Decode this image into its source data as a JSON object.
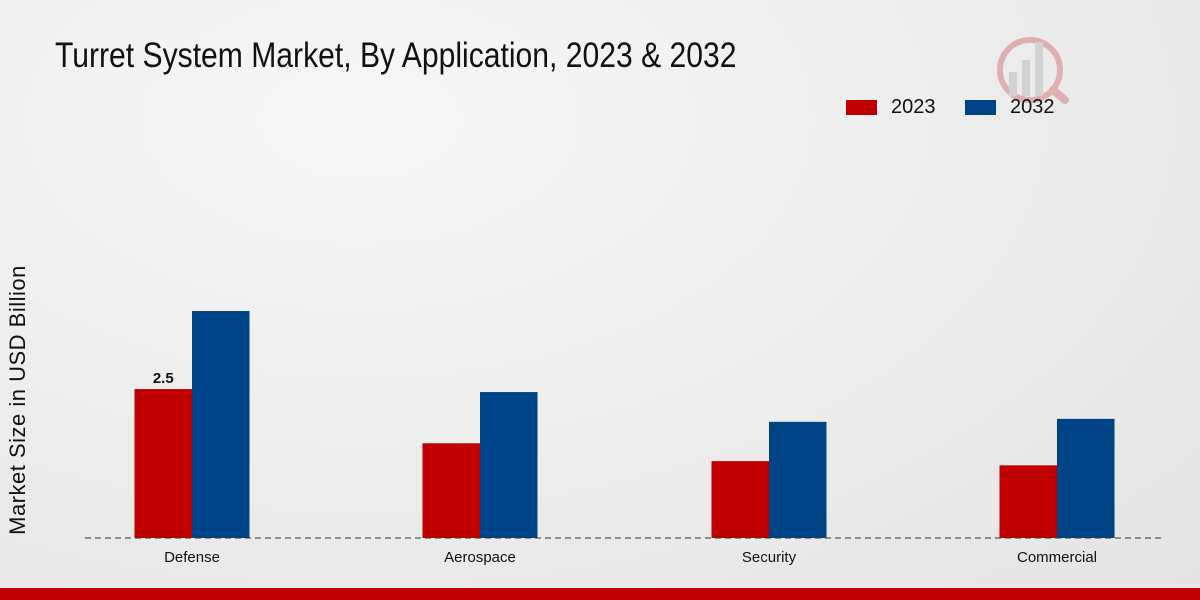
{
  "chart_data": {
    "type": "bar",
    "title": "Turret System Market, By Application, 2023 & 2032",
    "xlabel": "",
    "ylabel": "Market Size in USD Billion",
    "categories": [
      "Defense",
      "Aerospace",
      "Security",
      "Commercial"
    ],
    "series": [
      {
        "name": "2023",
        "color": "#c00000",
        "values": [
          2.5,
          1.59,
          1.29,
          1.22
        ]
      },
      {
        "name": "2032",
        "color": "#004488",
        "values": [
          3.81,
          2.45,
          1.95,
          2.0
        ]
      }
    ],
    "data_labels": [
      {
        "series": 0,
        "category": 0,
        "text": "2.5"
      }
    ],
    "ylim": [
      0,
      7
    ],
    "grid": false,
    "legend_position": "top-right"
  },
  "footer_color": "#c00000"
}
